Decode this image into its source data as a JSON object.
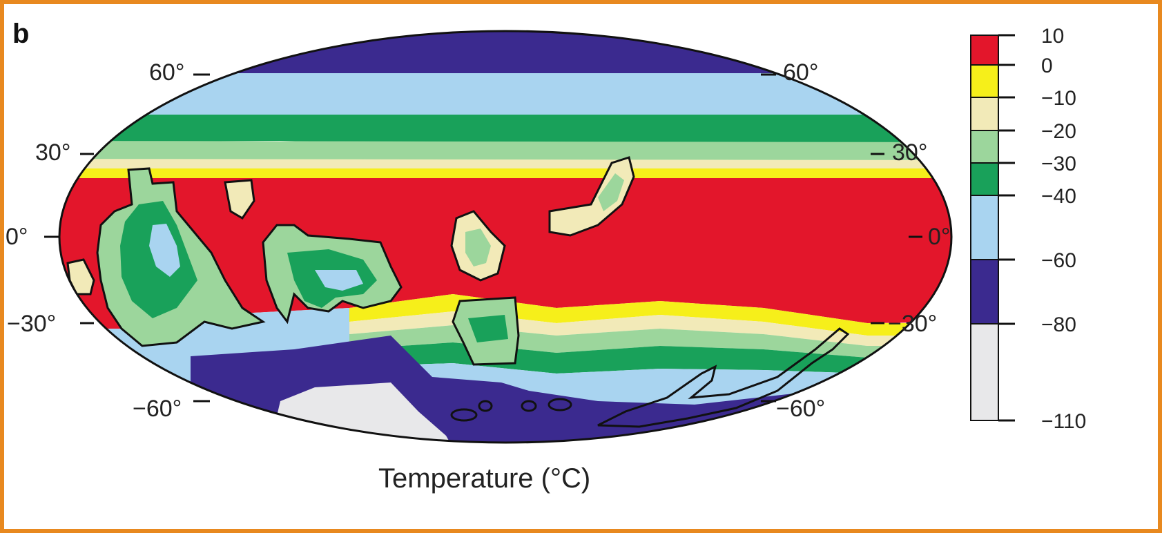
{
  "panel_label": "b",
  "caption": "Temperature (°C)",
  "latitude_labels": {
    "left": [
      "60°",
      "30°",
      "0°",
      "−30°",
      "−60°"
    ],
    "right": [
      "60°",
      "30°",
      "0°",
      "−30°",
      "−60°"
    ]
  },
  "colorbar": {
    "labels": [
      "10",
      "0",
      "−10",
      "−20",
      "−30",
      "−40",
      "−60",
      "−80",
      "−110"
    ],
    "colors": [
      "#e3162b",
      "#f6ef1a",
      "#f2eab8",
      "#9cd69c",
      "#19a15a",
      "#a9d4f0",
      "#3b2a8f",
      "#e8e8ea"
    ]
  },
  "palette": {
    "warm_above_0": "#e3162b",
    "band_0_to_-10": "#f6ef1a",
    "band_-10_to_-20": "#f2eab8",
    "band_-20_to_-30": "#9cd69c",
    "band_-30_to_-40": "#19a15a",
    "band_-40_to_-60": "#a9d4f0",
    "band_-60_to_-80": "#3b2a8f",
    "band_-80_to_-110": "#e8e8ea",
    "frame": "#e8891f"
  }
}
